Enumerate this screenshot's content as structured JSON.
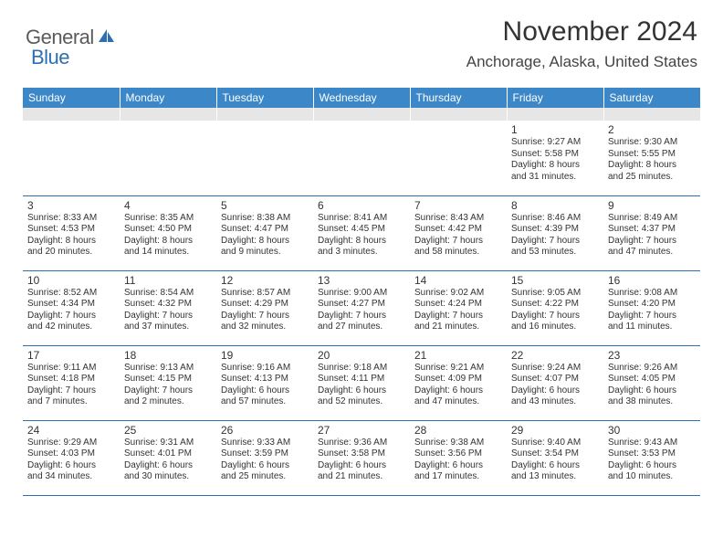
{
  "logo": {
    "general": "General",
    "blue": "Blue"
  },
  "title": "November 2024",
  "location": "Anchorage, Alaska, United States",
  "dayHeaders": [
    "Sunday",
    "Monday",
    "Tuesday",
    "Wednesday",
    "Thursday",
    "Friday",
    "Saturday"
  ],
  "colors": {
    "headerBg": "#3b87c8",
    "headerText": "#ffffff",
    "subheaderBg": "#e6e6e6",
    "borderBlue": "#2f6fb0",
    "logoGray": "#5b5b5b",
    "logoBlue": "#2f6fb0",
    "textColor": "#333333"
  },
  "weeks": [
    [
      null,
      null,
      null,
      null,
      null,
      {
        "n": "1",
        "sr": "Sunrise: 9:27 AM",
        "ss": "Sunset: 5:58 PM",
        "d1": "Daylight: 8 hours",
        "d2": "and 31 minutes."
      },
      {
        "n": "2",
        "sr": "Sunrise: 9:30 AM",
        "ss": "Sunset: 5:55 PM",
        "d1": "Daylight: 8 hours",
        "d2": "and 25 minutes."
      }
    ],
    [
      {
        "n": "3",
        "sr": "Sunrise: 8:33 AM",
        "ss": "Sunset: 4:53 PM",
        "d1": "Daylight: 8 hours",
        "d2": "and 20 minutes."
      },
      {
        "n": "4",
        "sr": "Sunrise: 8:35 AM",
        "ss": "Sunset: 4:50 PM",
        "d1": "Daylight: 8 hours",
        "d2": "and 14 minutes."
      },
      {
        "n": "5",
        "sr": "Sunrise: 8:38 AM",
        "ss": "Sunset: 4:47 PM",
        "d1": "Daylight: 8 hours",
        "d2": "and 9 minutes."
      },
      {
        "n": "6",
        "sr": "Sunrise: 8:41 AM",
        "ss": "Sunset: 4:45 PM",
        "d1": "Daylight: 8 hours",
        "d2": "and 3 minutes."
      },
      {
        "n": "7",
        "sr": "Sunrise: 8:43 AM",
        "ss": "Sunset: 4:42 PM",
        "d1": "Daylight: 7 hours",
        "d2": "and 58 minutes."
      },
      {
        "n": "8",
        "sr": "Sunrise: 8:46 AM",
        "ss": "Sunset: 4:39 PM",
        "d1": "Daylight: 7 hours",
        "d2": "and 53 minutes."
      },
      {
        "n": "9",
        "sr": "Sunrise: 8:49 AM",
        "ss": "Sunset: 4:37 PM",
        "d1": "Daylight: 7 hours",
        "d2": "and 47 minutes."
      }
    ],
    [
      {
        "n": "10",
        "sr": "Sunrise: 8:52 AM",
        "ss": "Sunset: 4:34 PM",
        "d1": "Daylight: 7 hours",
        "d2": "and 42 minutes."
      },
      {
        "n": "11",
        "sr": "Sunrise: 8:54 AM",
        "ss": "Sunset: 4:32 PM",
        "d1": "Daylight: 7 hours",
        "d2": "and 37 minutes."
      },
      {
        "n": "12",
        "sr": "Sunrise: 8:57 AM",
        "ss": "Sunset: 4:29 PM",
        "d1": "Daylight: 7 hours",
        "d2": "and 32 minutes."
      },
      {
        "n": "13",
        "sr": "Sunrise: 9:00 AM",
        "ss": "Sunset: 4:27 PM",
        "d1": "Daylight: 7 hours",
        "d2": "and 27 minutes."
      },
      {
        "n": "14",
        "sr": "Sunrise: 9:02 AM",
        "ss": "Sunset: 4:24 PM",
        "d1": "Daylight: 7 hours",
        "d2": "and 21 minutes."
      },
      {
        "n": "15",
        "sr": "Sunrise: 9:05 AM",
        "ss": "Sunset: 4:22 PM",
        "d1": "Daylight: 7 hours",
        "d2": "and 16 minutes."
      },
      {
        "n": "16",
        "sr": "Sunrise: 9:08 AM",
        "ss": "Sunset: 4:20 PM",
        "d1": "Daylight: 7 hours",
        "d2": "and 11 minutes."
      }
    ],
    [
      {
        "n": "17",
        "sr": "Sunrise: 9:11 AM",
        "ss": "Sunset: 4:18 PM",
        "d1": "Daylight: 7 hours",
        "d2": "and 7 minutes."
      },
      {
        "n": "18",
        "sr": "Sunrise: 9:13 AM",
        "ss": "Sunset: 4:15 PM",
        "d1": "Daylight: 7 hours",
        "d2": "and 2 minutes."
      },
      {
        "n": "19",
        "sr": "Sunrise: 9:16 AM",
        "ss": "Sunset: 4:13 PM",
        "d1": "Daylight: 6 hours",
        "d2": "and 57 minutes."
      },
      {
        "n": "20",
        "sr": "Sunrise: 9:18 AM",
        "ss": "Sunset: 4:11 PM",
        "d1": "Daylight: 6 hours",
        "d2": "and 52 minutes."
      },
      {
        "n": "21",
        "sr": "Sunrise: 9:21 AM",
        "ss": "Sunset: 4:09 PM",
        "d1": "Daylight: 6 hours",
        "d2": "and 47 minutes."
      },
      {
        "n": "22",
        "sr": "Sunrise: 9:24 AM",
        "ss": "Sunset: 4:07 PM",
        "d1": "Daylight: 6 hours",
        "d2": "and 43 minutes."
      },
      {
        "n": "23",
        "sr": "Sunrise: 9:26 AM",
        "ss": "Sunset: 4:05 PM",
        "d1": "Daylight: 6 hours",
        "d2": "and 38 minutes."
      }
    ],
    [
      {
        "n": "24",
        "sr": "Sunrise: 9:29 AM",
        "ss": "Sunset: 4:03 PM",
        "d1": "Daylight: 6 hours",
        "d2": "and 34 minutes."
      },
      {
        "n": "25",
        "sr": "Sunrise: 9:31 AM",
        "ss": "Sunset: 4:01 PM",
        "d1": "Daylight: 6 hours",
        "d2": "and 30 minutes."
      },
      {
        "n": "26",
        "sr": "Sunrise: 9:33 AM",
        "ss": "Sunset: 3:59 PM",
        "d1": "Daylight: 6 hours",
        "d2": "and 25 minutes."
      },
      {
        "n": "27",
        "sr": "Sunrise: 9:36 AM",
        "ss": "Sunset: 3:58 PM",
        "d1": "Daylight: 6 hours",
        "d2": "and 21 minutes."
      },
      {
        "n": "28",
        "sr": "Sunrise: 9:38 AM",
        "ss": "Sunset: 3:56 PM",
        "d1": "Daylight: 6 hours",
        "d2": "and 17 minutes."
      },
      {
        "n": "29",
        "sr": "Sunrise: 9:40 AM",
        "ss": "Sunset: 3:54 PM",
        "d1": "Daylight: 6 hours",
        "d2": "and 13 minutes."
      },
      {
        "n": "30",
        "sr": "Sunrise: 9:43 AM",
        "ss": "Sunset: 3:53 PM",
        "d1": "Daylight: 6 hours",
        "d2": "and 10 minutes."
      }
    ]
  ]
}
